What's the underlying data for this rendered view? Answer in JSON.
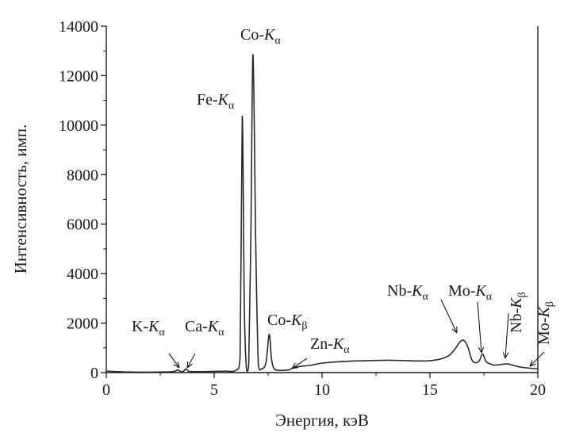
{
  "chart_data": {
    "type": "line",
    "title": "",
    "xlabel": "Энергия, кэВ",
    "ylabel": "Интенсивность, имп.",
    "xlim": [
      0,
      20
    ],
    "ylim": [
      0,
      14000
    ],
    "x_ticks": [
      0,
      5,
      10,
      15,
      20
    ],
    "y_ticks": [
      0,
      2000,
      4000,
      6000,
      8000,
      10000,
      12000,
      14000
    ],
    "grid": false,
    "legend": "none",
    "line_color": "#2a2a2a",
    "series": [
      {
        "x": [
          0,
          0.5,
          1,
          1.5,
          2,
          2.5,
          3,
          3.2,
          3.31,
          3.4,
          3.55,
          3.69,
          3.8,
          4,
          4.5,
          5,
          5.5,
          6,
          6.2,
          6.3,
          6.4,
          6.5,
          6.6,
          6.7,
          6.8,
          6.93,
          7.05,
          7.2,
          7.4,
          7.55,
          7.65,
          7.75,
          7.9,
          8.2,
          8.5,
          8.64,
          8.8,
          9,
          9.5,
          10,
          11,
          12,
          13,
          13.5,
          14,
          14.5,
          15,
          15.5,
          15.9,
          16.2,
          16.4,
          16.58,
          16.75,
          16.95,
          17.15,
          17.3,
          17.44,
          17.6,
          17.8,
          18,
          18.3,
          18.6,
          18.9,
          19.2,
          19.6,
          20
        ],
        "y": [
          60,
          40,
          25,
          20,
          20,
          25,
          35,
          60,
          110,
          60,
          40,
          150,
          60,
          40,
          40,
          50,
          60,
          90,
          600,
          10350,
          2500,
          120,
          300,
          5500,
          12850,
          5000,
          300,
          150,
          400,
          1550,
          600,
          200,
          100,
          90,
          120,
          200,
          220,
          250,
          300,
          380,
          450,
          480,
          500,
          490,
          480,
          470,
          480,
          550,
          700,
          1000,
          1250,
          1300,
          1050,
          500,
          400,
          500,
          750,
          450,
          350,
          300,
          330,
          350,
          280,
          220,
          180,
          150
        ]
      }
    ],
    "annotations": [
      {
        "text": "K-",
        "sub": "α",
        "x": 3.31,
        "y": 110
      },
      {
        "text": "Ca-",
        "sub": "α",
        "x": 3.69,
        "y": 150
      },
      {
        "text": "Fe-",
        "sub": "α",
        "x": 6.4,
        "y": 10350
      },
      {
        "text": "Co-",
        "sub": "α",
        "x": 6.93,
        "y": 12850
      },
      {
        "text": "Co-",
        "sub": "β",
        "x": 7.65,
        "y": 1550
      },
      {
        "text": "Zn-",
        "sub": "α",
        "x": 8.64,
        "y": 200
      },
      {
        "text": "Nb-",
        "sub": "α",
        "x": 16.58,
        "y": 1300
      },
      {
        "text": "Mo-",
        "sub": "α",
        "x": 17.44,
        "y": 750
      },
      {
        "text": "Nb-",
        "sub": "β",
        "x": 18.6,
        "y": 350
      },
      {
        "text": "Mo-",
        "sub": "β",
        "x": 19.6,
        "y": 180
      }
    ]
  }
}
